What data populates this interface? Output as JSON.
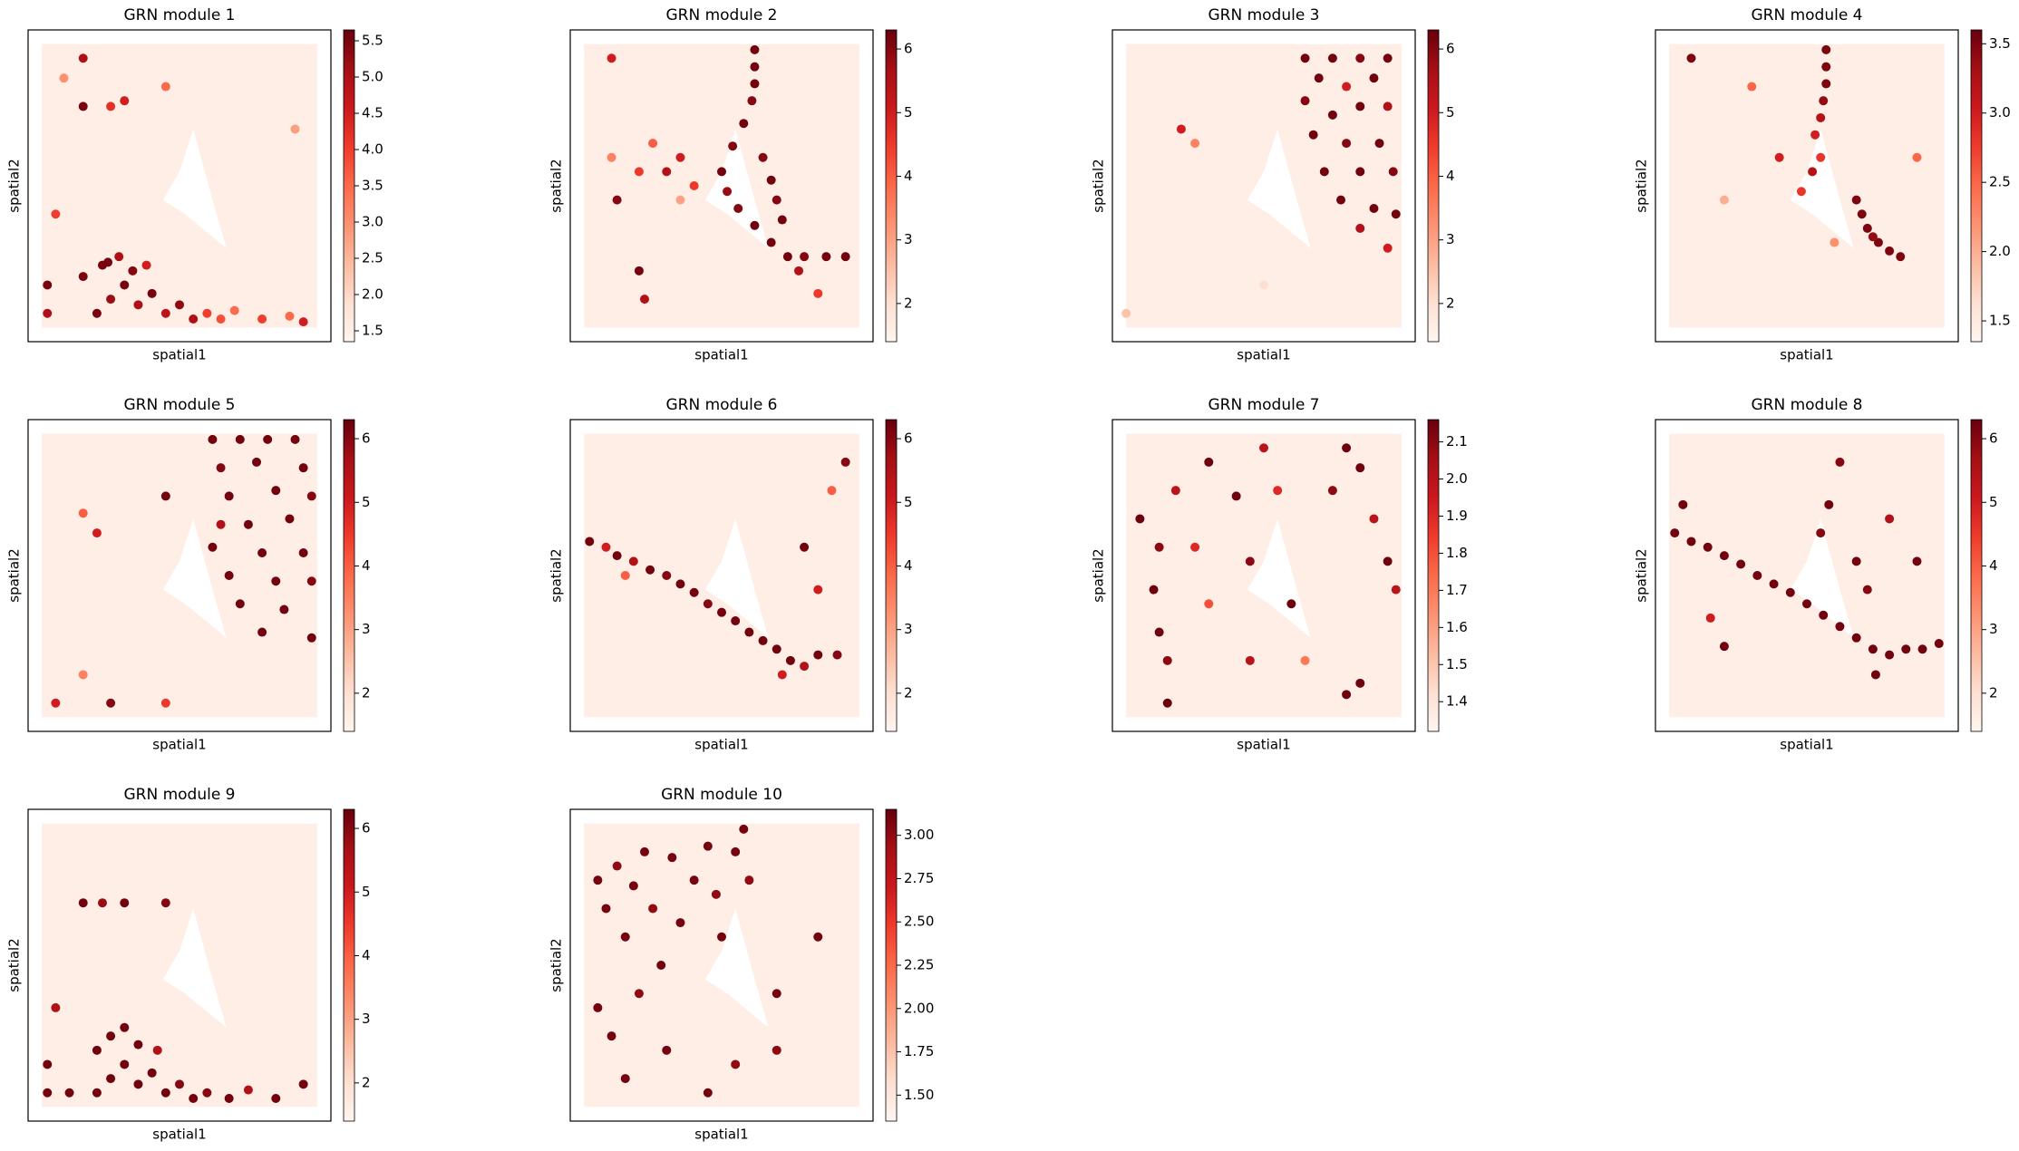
{
  "chart_data": [
    {
      "type": "scatter",
      "title": "GRN module 1",
      "xlabel": "spatial1",
      "ylabel": "spatial2",
      "xlim": [
        -5,
        105
      ],
      "ylim": [
        -5,
        105
      ],
      "colormap": "Reds",
      "x": [
        20,
        25,
        30,
        35,
        40,
        45,
        50,
        55,
        15,
        22,
        28,
        33,
        38,
        60,
        65,
        70,
        80,
        90,
        95,
        2,
        2,
        5,
        15,
        25,
        30,
        45,
        15,
        8,
        92,
        24
      ],
      "y": [
        5,
        10,
        15,
        8,
        12,
        5,
        8,
        3,
        18,
        22,
        25,
        20,
        22,
        5,
        3,
        6,
        3,
        4,
        2,
        15,
        5,
        40,
        78,
        78,
        80,
        85,
        95,
        88,
        70,
        23
      ],
      "values": [
        5.5,
        5.2,
        5.5,
        5.0,
        5.5,
        4.8,
        5.3,
        5.0,
        5.5,
        5.5,
        5.0,
        5.4,
        4.5,
        4.0,
        3.8,
        3.5,
        4.0,
        3.5,
        4.5,
        5.5,
        5.0,
        4.0,
        5.5,
        4.2,
        4.5,
        3.5,
        5.0,
        3.0,
        2.8,
        5.5
      ],
      "clim": [
        1.35,
        5.65
      ],
      "cticks": [
        1.5,
        {
          "value": 2,
          "label": "2.0"
        },
        2.5,
        {
          "value": 3,
          "label": "3.0"
        },
        3.5,
        {
          "value": 4,
          "label": "4.0"
        },
        4.5,
        {
          "value": 5,
          "label": "5.0"
        },
        5.5
      ]
    },
    {
      "type": "scatter",
      "title": "GRN module 2",
      "xlabel": "spatial1",
      "ylabel": "spatial2",
      "xlim": [
        -5,
        105
      ],
      "ylim": [
        -5,
        105
      ],
      "colormap": "Reds",
      "x": [
        62,
        62,
        62,
        61,
        58,
        54,
        50,
        52,
        56,
        62,
        68,
        74,
        80,
        88,
        95,
        78,
        65,
        68,
        70,
        72,
        30,
        20,
        35,
        10,
        25,
        40,
        12,
        20,
        22,
        10,
        35,
        85
      ],
      "y": [
        98,
        92,
        86,
        80,
        72,
        64,
        55,
        48,
        42,
        36,
        30,
        25,
        25,
        25,
        25,
        20,
        60,
        52,
        45,
        38,
        55,
        55,
        60,
        60,
        65,
        50,
        45,
        20,
        10,
        95,
        45,
        12
      ],
      "values": [
        6.2,
        6.2,
        6.2,
        6.0,
        6.2,
        6.0,
        6.2,
        5.8,
        6.0,
        6.2,
        6.2,
        6.2,
        6.0,
        6.2,
        6.2,
        5.5,
        6.0,
        6.2,
        6.0,
        6.2,
        5.5,
        4.5,
        5.0,
        3.5,
        4.0,
        4.5,
        6.0,
        6.2,
        5.5,
        5.0,
        3.0,
        4.5
      ],
      "clim": [
        1.4,
        6.3
      ],
      "cticks": [
        2,
        3,
        4,
        5,
        6
      ]
    },
    {
      "type": "scatter",
      "title": "GRN module 3",
      "xlabel": "spatial1",
      "ylabel": "spatial2",
      "xlim": [
        -5,
        105
      ],
      "ylim": [
        -5,
        105
      ],
      "colormap": "Reds",
      "x": [
        65,
        75,
        85,
        95,
        70,
        80,
        90,
        65,
        75,
        85,
        95,
        68,
        80,
        92,
        72,
        85,
        97,
        78,
        90,
        98,
        85,
        95,
        20,
        25,
        0,
        50
      ],
      "y": [
        95,
        95,
        95,
        95,
        88,
        85,
        88,
        80,
        75,
        78,
        78,
        68,
        65,
        65,
        55,
        55,
        55,
        45,
        42,
        40,
        35,
        28,
        70,
        65,
        5,
        15
      ],
      "values": [
        6.2,
        6.2,
        6.0,
        6.2,
        6.2,
        5.0,
        6.2,
        6.0,
        6.2,
        6.2,
        5.5,
        6.2,
        6.0,
        6.2,
        6.2,
        6.2,
        6.0,
        6.2,
        6.2,
        6.2,
        5.5,
        5.0,
        5.0,
        3.5,
        2.5,
        2.0
      ],
      "clim": [
        1.4,
        6.3
      ],
      "cticks": [
        2,
        3,
        4,
        5,
        6
      ]
    },
    {
      "type": "scatter",
      "title": "GRN module 4",
      "xlabel": "spatial1",
      "ylabel": "spatial2",
      "xlim": [
        -5,
        105
      ],
      "ylim": [
        -5,
        105
      ],
      "colormap": "Reds",
      "x": [
        57,
        57,
        57,
        56,
        55,
        53,
        55,
        52,
        68,
        70,
        72,
        76,
        80,
        84,
        74,
        8,
        40,
        30,
        48,
        90,
        20,
        60
      ],
      "y": [
        98,
        92,
        86,
        80,
        74,
        68,
        60,
        55,
        45,
        40,
        35,
        30,
        27,
        25,
        32,
        95,
        60,
        85,
        48,
        60,
        45,
        30
      ],
      "values": [
        3.5,
        3.5,
        3.5,
        3.4,
        3.2,
        3.0,
        2.8,
        3.2,
        3.5,
        3.5,
        3.5,
        3.5,
        3.5,
        3.5,
        3.4,
        3.5,
        3.0,
        2.5,
        2.8,
        2.5,
        2.0,
        2.2
      ],
      "clim": [
        1.35,
        3.6
      ],
      "cticks": [
        1.5,
        {
          "value": 2,
          "label": "2.0"
        },
        2.5,
        {
          "value": 3,
          "label": "3.0"
        },
        3.5
      ]
    },
    {
      "type": "scatter",
      "title": "GRN module 5",
      "xlabel": "spatial1",
      "ylabel": "spatial2",
      "xlim": [
        -5,
        105
      ],
      "ylim": [
        -5,
        105
      ],
      "colormap": "Reds",
      "x": [
        62,
        72,
        82,
        92,
        65,
        78,
        95,
        68,
        85,
        98,
        65,
        75,
        90,
        62,
        80,
        95,
        68,
        85,
        98,
        72,
        88,
        80,
        98,
        45,
        15,
        20,
        5,
        25,
        15,
        45
      ],
      "y": [
        98,
        98,
        98,
        98,
        88,
        90,
        88,
        78,
        80,
        78,
        68,
        68,
        70,
        60,
        58,
        58,
        50,
        48,
        48,
        40,
        38,
        30,
        28,
        78,
        72,
        65,
        5,
        5,
        15,
        5
      ],
      "values": [
        6.2,
        6.2,
        6.2,
        6.2,
        6.0,
        6.2,
        6.2,
        6.2,
        6.2,
        6.0,
        5.5,
        6.2,
        6.2,
        6.2,
        6.2,
        6.2,
        6.2,
        6.2,
        6.0,
        6.2,
        6.2,
        6.2,
        6.2,
        6.2,
        4.0,
        5.0,
        5.0,
        6.0,
        3.5,
        4.5
      ],
      "clim": [
        1.4,
        6.3
      ],
      "cticks": [
        2,
        3,
        4,
        5,
        6
      ]
    },
    {
      "type": "scatter",
      "title": "GRN module 6",
      "xlabel": "spatial1",
      "ylabel": "spatial2",
      "xlim": [
        -5,
        105
      ],
      "ylim": [
        -5,
        105
      ],
      "colormap": "Reds",
      "x": [
        2,
        8,
        12,
        18,
        24,
        30,
        35,
        40,
        45,
        50,
        55,
        60,
        65,
        70,
        75,
        80,
        85,
        92,
        72,
        15,
        80,
        95,
        85,
        90
      ],
      "y": [
        62,
        60,
        57,
        55,
        52,
        50,
        47,
        44,
        40,
        37,
        34,
        30,
        27,
        24,
        20,
        18,
        22,
        22,
        15,
        50,
        60,
        90,
        45,
        80
      ],
      "values": [
        6.2,
        5.0,
        6.2,
        5.5,
        6.2,
        6.0,
        6.2,
        6.2,
        6.0,
        6.2,
        6.2,
        6.2,
        6.2,
        6.2,
        6.2,
        5.5,
        6.2,
        6.0,
        5.0,
        4.0,
        6.2,
        6.0,
        5.0,
        4.0
      ],
      "clim": [
        1.4,
        6.3
      ],
      "cticks": [
        2,
        3,
        4,
        5,
        6
      ]
    },
    {
      "type": "scatter",
      "title": "GRN module 7",
      "xlabel": "spatial1",
      "ylabel": "spatial2",
      "xlim": [
        -5,
        105
      ],
      "ylim": [
        -5,
        105
      ],
      "colormap": "Reds",
      "x": [
        5,
        12,
        10,
        12,
        15,
        15,
        18,
        30,
        40,
        45,
        50,
        55,
        60,
        75,
        80,
        85,
        90,
        95,
        98,
        85,
        80,
        30,
        45,
        65,
        25
      ],
      "y": [
        70,
        60,
        45,
        30,
        20,
        5,
        80,
        90,
        78,
        55,
        95,
        80,
        40,
        80,
        95,
        88,
        70,
        55,
        45,
        12,
        8,
        40,
        20,
        20,
        60
      ],
      "values": [
        2.15,
        2.1,
        2.15,
        2.15,
        2.1,
        2.15,
        2.0,
        2.15,
        2.15,
        2.1,
        2.0,
        1.9,
        2.15,
        2.1,
        2.15,
        2.15,
        2.0,
        2.15,
        2.0,
        2.15,
        2.15,
        1.8,
        2.0,
        1.7,
        1.9
      ],
      "clim": [
        1.32,
        2.16
      ],
      "cticks": [
        1.4,
        1.5,
        1.6,
        1.7,
        1.8,
        1.9,
        {
          "value": 2,
          "label": "2.0"
        },
        2.1
      ]
    },
    {
      "type": "scatter",
      "title": "GRN module 8",
      "xlabel": "spatial1",
      "ylabel": "spatial2",
      "xlim": [
        -5,
        105
      ],
      "ylim": [
        -5,
        105
      ],
      "colormap": "Reds",
      "x": [
        2,
        8,
        14,
        20,
        26,
        32,
        38,
        44,
        50,
        56,
        62,
        68,
        74,
        80,
        86,
        92,
        98,
        75,
        62,
        58,
        55,
        68,
        72,
        80,
        90,
        15,
        20,
        5
      ],
      "y": [
        65,
        62,
        60,
        57,
        54,
        50,
        47,
        44,
        40,
        36,
        32,
        28,
        24,
        22,
        24,
        24,
        26,
        15,
        90,
        75,
        65,
        55,
        45,
        70,
        55,
        35,
        25,
        75
      ],
      "values": [
        6.2,
        6.2,
        6.2,
        6.2,
        6.2,
        6.2,
        6.2,
        6.2,
        6.2,
        6.2,
        6.2,
        6.2,
        6.2,
        6.2,
        6.2,
        6.2,
        6.2,
        6.2,
        6.0,
        6.2,
        6.0,
        6.2,
        6.0,
        5.5,
        6.2,
        5.0,
        6.2,
        6.2
      ],
      "clim": [
        1.4,
        6.3
      ],
      "cticks": [
        2,
        3,
        4,
        5,
        6
      ]
    },
    {
      "type": "scatter",
      "title": "GRN module 9",
      "xlabel": "spatial1",
      "ylabel": "spatial2",
      "xlim": [
        -5,
        105
      ],
      "ylim": [
        -5,
        105
      ],
      "colormap": "Reds",
      "x": [
        20,
        25,
        30,
        35,
        40,
        45,
        50,
        55,
        20,
        25,
        30,
        35,
        42,
        60,
        68,
        75,
        85,
        95,
        2,
        2,
        5,
        15,
        22,
        30,
        45,
        10
      ],
      "y": [
        5,
        10,
        15,
        8,
        12,
        5,
        8,
        3,
        20,
        25,
        28,
        22,
        20,
        5,
        3,
        6,
        3,
        8,
        15,
        5,
        35,
        72,
        72,
        72,
        72,
        5
      ],
      "values": [
        6.2,
        6.2,
        6.2,
        6.2,
        6.2,
        6.2,
        6.0,
        6.2,
        6.2,
        6.2,
        6.2,
        6.2,
        5.5,
        6.0,
        6.2,
        5.5,
        6.2,
        6.2,
        6.2,
        6.2,
        5.5,
        6.2,
        5.8,
        6.2,
        6.0,
        6.2
      ],
      "clim": [
        1.4,
        6.3
      ],
      "cticks": [
        2,
        3,
        4,
        5,
        6
      ]
    },
    {
      "type": "scatter",
      "title": "GRN module 10",
      "xlabel": "spatial1",
      "ylabel": "spatial2",
      "xlim": [
        -5,
        105
      ],
      "ylim": [
        -5,
        105
      ],
      "colormap": "Reds",
      "x": [
        5,
        8,
        12,
        15,
        18,
        22,
        25,
        28,
        32,
        35,
        40,
        45,
        48,
        50,
        55,
        58,
        60,
        5,
        10,
        15,
        20,
        30,
        45,
        55,
        70,
        85,
        70
      ],
      "y": [
        80,
        70,
        85,
        60,
        78,
        90,
        70,
        50,
        88,
        65,
        80,
        92,
        75,
        60,
        90,
        98,
        80,
        35,
        25,
        10,
        40,
        20,
        5,
        15,
        40,
        60,
        20
      ],
      "values": [
        3.1,
        3.1,
        3.0,
        3.1,
        3.1,
        3.1,
        3.0,
        3.1,
        3.1,
        3.1,
        3.1,
        3.1,
        3.0,
        3.1,
        3.1,
        3.1,
        3.0,
        3.1,
        3.1,
        3.1,
        3.0,
        3.1,
        3.1,
        3.0,
        3.1,
        3.1,
        3.0
      ],
      "clim": [
        1.35,
        3.15
      ],
      "cticks": [
        {
          "value": 1.5,
          "label": "1.50"
        },
        1.75,
        {
          "value": 2,
          "label": "2.00"
        },
        2.25,
        {
          "value": 2.5,
          "label": "2.50"
        },
        2.75,
        {
          "value": 3,
          "label": "3.00"
        }
      ]
    }
  ]
}
